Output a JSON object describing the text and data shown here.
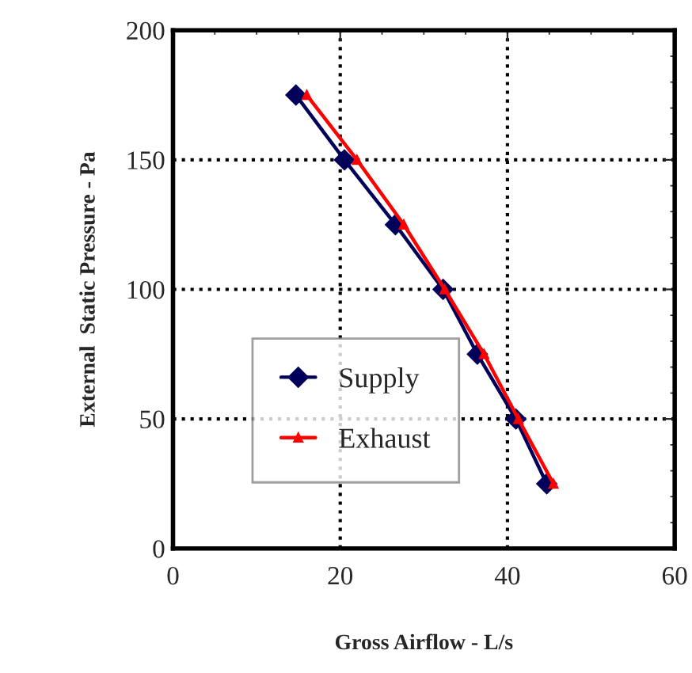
{
  "chart_data": {
    "type": "line",
    "xlabel": "Gross Airflow - L/s",
    "ylabel": "External  Static Pressure - Pa",
    "xlim": [
      0,
      60
    ],
    "xticks": [
      0,
      20,
      40,
      60
    ],
    "ylim": [
      0,
      200
    ],
    "yticks": [
      0,
      50,
      100,
      150,
      200
    ],
    "grid": true,
    "legend": "bottom left",
    "series": [
      {
        "name": "Supply",
        "color": "#00005a",
        "marker": "diamond",
        "x": [
          14.7,
          20.5,
          26.6,
          32.3,
          36.4,
          41.0,
          44.7
        ],
        "values": [
          175,
          150,
          125,
          100,
          75,
          50,
          25
        ]
      },
      {
        "name": "Exhaust",
        "color": "#ff0000",
        "marker": "triangle",
        "x": [
          16.0,
          22.0,
          27.6,
          32.5,
          37.2,
          41.3,
          45.5
        ],
        "values": [
          175,
          150,
          125,
          100,
          75,
          50,
          25
        ]
      }
    ]
  }
}
